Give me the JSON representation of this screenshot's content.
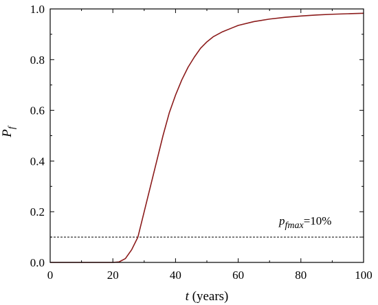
{
  "chart_data": {
    "type": "line",
    "xlabel": {
      "symbol": "t",
      "text": " (years)"
    },
    "ylabel": {
      "symbol": "P",
      "subscript": "f"
    },
    "xlim": [
      0,
      100
    ],
    "ylim": [
      0.0,
      1.0
    ],
    "x_ticks": [
      "0",
      "20",
      "40",
      "60",
      "80",
      "100"
    ],
    "y_ticks": [
      "0.0",
      "0.2",
      "0.4",
      "0.6",
      "0.8",
      "1.0"
    ],
    "grid": false,
    "legend": "none",
    "series": [
      {
        "color": "#8b1a1a",
        "style": "solid",
        "points": [
          [
            0,
            0.0
          ],
          [
            20,
            0.0
          ],
          [
            22,
            0.002
          ],
          [
            24,
            0.015
          ],
          [
            26,
            0.05
          ],
          [
            28,
            0.1
          ],
          [
            30,
            0.2
          ],
          [
            32,
            0.3
          ],
          [
            34,
            0.4
          ],
          [
            36,
            0.5
          ],
          [
            38,
            0.59
          ],
          [
            40,
            0.66
          ],
          [
            42,
            0.72
          ],
          [
            44,
            0.77
          ],
          [
            46,
            0.81
          ],
          [
            48,
            0.845
          ],
          [
            50,
            0.87
          ],
          [
            52,
            0.89
          ],
          [
            55,
            0.91
          ],
          [
            58,
            0.925
          ],
          [
            60,
            0.935
          ],
          [
            65,
            0.95
          ],
          [
            70,
            0.96
          ],
          [
            75,
            0.967
          ],
          [
            80,
            0.972
          ],
          [
            85,
            0.976
          ],
          [
            90,
            0.979
          ],
          [
            95,
            0.981
          ],
          [
            100,
            0.983
          ]
        ]
      }
    ],
    "reference_lines": [
      {
        "y": 0.1,
        "style": "dashed",
        "color": "#000000"
      }
    ],
    "annotation": {
      "base": "p",
      "subscript": "fmax",
      "text": "=10%"
    }
  }
}
